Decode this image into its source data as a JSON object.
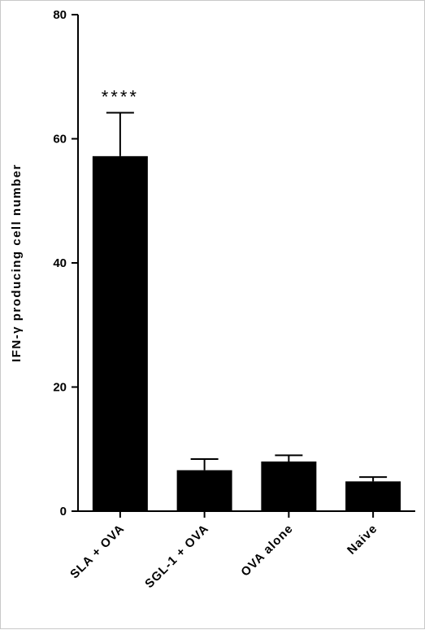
{
  "chart_data": {
    "type": "bar",
    "categories": [
      "SLA + OVA",
      "SGL-1 + OVA",
      "OVA alone",
      "Naive"
    ],
    "values": [
      57.2,
      6.6,
      8.0,
      4.8
    ],
    "errors": [
      7.0,
      1.8,
      1.0,
      0.7
    ],
    "ylabel": "IFN-γ producing cell number",
    "ylim": [
      0,
      80
    ],
    "yticks": [
      0,
      20,
      40,
      60,
      80
    ],
    "annotations": [
      {
        "category": "SLA + OVA",
        "text": "****"
      }
    ],
    "bar_color": "#000000",
    "grid": false
  }
}
